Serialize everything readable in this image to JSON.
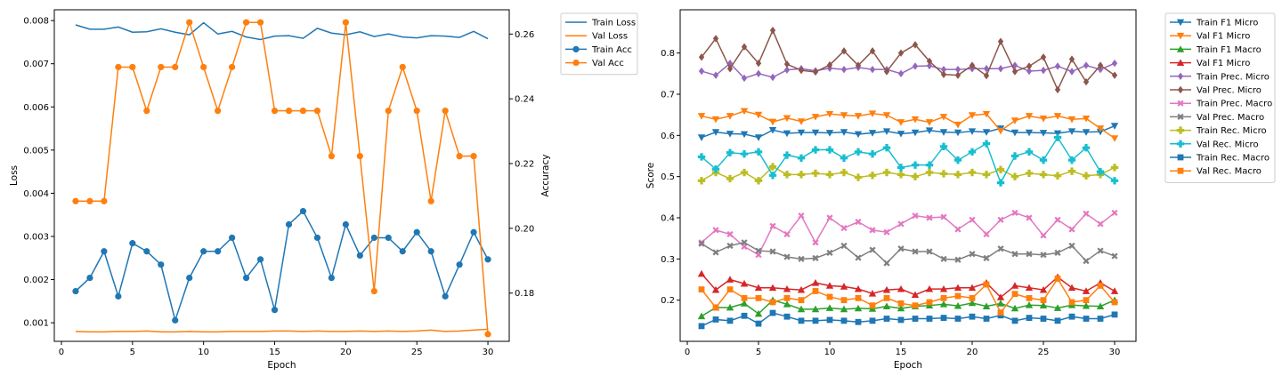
{
  "chart_data": [
    {
      "type": "line",
      "title": "",
      "xlabel": "Epoch",
      "ylabel": "Loss",
      "y2label": "Accuracy",
      "xlim": [
        -0.5,
        31.5
      ],
      "ylim": [
        0.00057,
        0.00825
      ],
      "y2lim": [
        0.1651,
        0.2675
      ],
      "xticks": [
        "0",
        "5",
        "10",
        "15",
        "20",
        "25",
        "30"
      ],
      "yticks": [
        "0.001",
        "0.002",
        "0.003",
        "0.004",
        "0.005",
        "0.006",
        "0.007",
        "0.008"
      ],
      "y2ticks": [
        "0.18",
        "0.20",
        "0.22",
        "0.24",
        "0.26"
      ],
      "legend_position": "upper-right-outside",
      "x": [
        1,
        2,
        3,
        4,
        5,
        6,
        7,
        8,
        9,
        10,
        11,
        12,
        13,
        14,
        15,
        16,
        17,
        18,
        19,
        20,
        21,
        22,
        23,
        24,
        25,
        26,
        27,
        28,
        29,
        30
      ],
      "series": [
        {
          "name": "Train Loss",
          "axis": "left",
          "color": "#1f77b4",
          "marker": "none",
          "values": [
            0.0079,
            0.0078,
            0.0078,
            0.00785,
            0.00773,
            0.00774,
            0.00781,
            0.00773,
            0.00767,
            0.00795,
            0.00769,
            0.00775,
            0.00762,
            0.00756,
            0.00764,
            0.00765,
            0.00759,
            0.00782,
            0.00771,
            0.00767,
            0.00774,
            0.00763,
            0.00769,
            0.00762,
            0.0076,
            0.00765,
            0.00764,
            0.00761,
            0.00775,
            0.00758
          ]
        },
        {
          "name": "Val Loss",
          "axis": "left",
          "color": "#ff7f0e",
          "marker": "none",
          "values": [
            0.0008,
            0.00079,
            0.00079,
            0.0008,
            0.0008,
            0.00081,
            0.00079,
            0.00079,
            0.0008,
            0.00079,
            0.00079,
            0.0008,
            0.0008,
            0.0008,
            0.00081,
            0.00081,
            0.0008,
            0.00081,
            0.0008,
            0.0008,
            0.00081,
            0.0008,
            0.00081,
            0.0008,
            0.00081,
            0.00083,
            0.0008,
            0.00081,
            0.00083,
            0.00085
          ]
        },
        {
          "name": "Train Acc",
          "axis": "right",
          "color": "#1f77b4",
          "marker": "circle",
          "values": [
            0.1806,
            0.1847,
            0.1929,
            0.179,
            0.1954,
            0.1929,
            0.1888,
            0.1716,
            0.1847,
            0.1929,
            0.1929,
            0.1971,
            0.1847,
            0.1904,
            0.1748,
            0.2012,
            0.2053,
            0.1971,
            0.1847,
            0.2012,
            0.1916,
            0.1971,
            0.1971,
            0.1929,
            0.1988,
            0.1929,
            0.179,
            0.1888,
            0.1988,
            0.1904
          ]
        },
        {
          "name": "Val Acc",
          "axis": "right",
          "color": "#ff7f0e",
          "marker": "circle",
          "values": [
            0.2084,
            0.2084,
            0.2084,
            0.2498,
            0.2498,
            0.2363,
            0.2498,
            0.2498,
            0.2636,
            0.2498,
            0.2363,
            0.2498,
            0.2636,
            0.2636,
            0.2363,
            0.2363,
            0.2363,
            0.2363,
            0.2223,
            0.2636,
            0.2223,
            0.1806,
            0.2363,
            0.2498,
            0.2363,
            0.2084,
            0.2363,
            0.2223,
            0.2223,
            0.1673
          ]
        }
      ]
    },
    {
      "type": "line",
      "title": "",
      "xlabel": "Epoch",
      "ylabel": "Score",
      "xlim": [
        -0.5,
        31.5
      ],
      "ylim": [
        0.1,
        0.905
      ],
      "xticks": [
        "0",
        "5",
        "10",
        "15",
        "20",
        "25",
        "30"
      ],
      "yticks": [
        "0.2",
        "0.3",
        "0.4",
        "0.5",
        "0.6",
        "0.7",
        "0.8"
      ],
      "legend_position": "upper-right-outside",
      "x": [
        1,
        2,
        3,
        4,
        5,
        6,
        7,
        8,
        9,
        10,
        11,
        12,
        13,
        14,
        15,
        16,
        17,
        18,
        19,
        20,
        21,
        22,
        23,
        24,
        25,
        26,
        27,
        28,
        29,
        30
      ],
      "series": [
        {
          "name": "Train F1 Micro",
          "color": "#1f77b4",
          "marker": "triangle-down",
          "values": [
            0.595,
            0.608,
            0.604,
            0.603,
            0.595,
            0.613,
            0.605,
            0.607,
            0.607,
            0.606,
            0.608,
            0.603,
            0.606,
            0.61,
            0.604,
            0.607,
            0.612,
            0.608,
            0.607,
            0.61,
            0.608,
            0.617,
            0.607,
            0.607,
            0.606,
            0.605,
            0.61,
            0.608,
            0.609,
            0.623
          ]
        },
        {
          "name": "Val F1 Micro",
          "color": "#ff7f0e",
          "marker": "triangle-down",
          "values": [
            0.647,
            0.639,
            0.647,
            0.659,
            0.65,
            0.633,
            0.642,
            0.634,
            0.645,
            0.652,
            0.649,
            0.647,
            0.653,
            0.649,
            0.632,
            0.639,
            0.632,
            0.645,
            0.626,
            0.649,
            0.652,
            0.611,
            0.636,
            0.647,
            0.641,
            0.647,
            0.639,
            0.641,
            0.617,
            0.593
          ]
        },
        {
          "name": "Train F1 Macro",
          "color": "#2ca02c",
          "marker": "triangle-up",
          "values": [
            0.161,
            0.182,
            0.182,
            0.192,
            0.167,
            0.2,
            0.19,
            0.178,
            0.178,
            0.181,
            0.178,
            0.18,
            0.179,
            0.185,
            0.18,
            0.185,
            0.187,
            0.19,
            0.186,
            0.193,
            0.185,
            0.192,
            0.18,
            0.188,
            0.187,
            0.181,
            0.188,
            0.186,
            0.185,
            0.2
          ]
        },
        {
          "name": "Val F1 Micro",
          "color": "#d62728",
          "marker": "triangle-up",
          "values": [
            0.264,
            0.225,
            0.25,
            0.24,
            0.23,
            0.23,
            0.227,
            0.225,
            0.242,
            0.235,
            0.233,
            0.227,
            0.216,
            0.225,
            0.227,
            0.213,
            0.227,
            0.227,
            0.23,
            0.23,
            0.242,
            0.207,
            0.235,
            0.23,
            0.225,
            0.256,
            0.23,
            0.222,
            0.242,
            0.222
          ]
        },
        {
          "name": "Train Prec. Micro",
          "color": "#9467bd",
          "marker": "diamond",
          "values": [
            0.756,
            0.746,
            0.775,
            0.739,
            0.75,
            0.741,
            0.759,
            0.762,
            0.757,
            0.763,
            0.76,
            0.765,
            0.76,
            0.76,
            0.75,
            0.768,
            0.769,
            0.76,
            0.76,
            0.762,
            0.762,
            0.762,
            0.77,
            0.756,
            0.758,
            0.768,
            0.755,
            0.77,
            0.76,
            0.775
          ]
        },
        {
          "name": "Val Prec. Micro",
          "color": "#8c564b",
          "marker": "diamond",
          "values": [
            0.79,
            0.835,
            0.762,
            0.815,
            0.775,
            0.855,
            0.773,
            0.758,
            0.754,
            0.771,
            0.805,
            0.77,
            0.805,
            0.755,
            0.8,
            0.82,
            0.78,
            0.748,
            0.746,
            0.77,
            0.745,
            0.828,
            0.755,
            0.768,
            0.79,
            0.711,
            0.785,
            0.73,
            0.77,
            0.746
          ]
        },
        {
          "name": "Train Prec. Macro",
          "color": "#e377c2",
          "marker": "x",
          "values": [
            0.34,
            0.37,
            0.36,
            0.33,
            0.31,
            0.38,
            0.36,
            0.405,
            0.34,
            0.4,
            0.375,
            0.39,
            0.37,
            0.365,
            0.385,
            0.405,
            0.4,
            0.402,
            0.372,
            0.395,
            0.36,
            0.395,
            0.412,
            0.4,
            0.357,
            0.395,
            0.372,
            0.41,
            0.385,
            0.412
          ]
        },
        {
          "name": "Val Prec. Macro",
          "color": "#7f7f7f",
          "marker": "x",
          "values": [
            0.337,
            0.316,
            0.332,
            0.34,
            0.32,
            0.318,
            0.305,
            0.3,
            0.302,
            0.315,
            0.332,
            0.303,
            0.322,
            0.29,
            0.325,
            0.318,
            0.318,
            0.3,
            0.298,
            0.312,
            0.302,
            0.325,
            0.312,
            0.312,
            0.31,
            0.315,
            0.332,
            0.295,
            0.32,
            0.307
          ]
        },
        {
          "name": "Train Rec. Micro",
          "color": "#bcbd22",
          "marker": "plus",
          "values": [
            0.49,
            0.51,
            0.495,
            0.51,
            0.49,
            0.524,
            0.505,
            0.505,
            0.508,
            0.505,
            0.51,
            0.498,
            0.503,
            0.51,
            0.505,
            0.5,
            0.51,
            0.507,
            0.505,
            0.51,
            0.505,
            0.517,
            0.5,
            0.508,
            0.505,
            0.502,
            0.513,
            0.502,
            0.505,
            0.522
          ]
        },
        {
          "name": "Val Rec. Micro",
          "color": "#17becf",
          "marker": "plus",
          "values": [
            0.548,
            0.518,
            0.558,
            0.555,
            0.56,
            0.503,
            0.552,
            0.545,
            0.565,
            0.565,
            0.545,
            0.56,
            0.555,
            0.57,
            0.522,
            0.528,
            0.528,
            0.573,
            0.54,
            0.56,
            0.58,
            0.485,
            0.55,
            0.56,
            0.54,
            0.595,
            0.54,
            0.57,
            0.512,
            0.49
          ]
        },
        {
          "name": "Train Rec. Macro",
          "color": "#1f77b4",
          "marker": "square",
          "values": [
            0.137,
            0.153,
            0.15,
            0.162,
            0.143,
            0.169,
            0.16,
            0.15,
            0.15,
            0.152,
            0.15,
            0.147,
            0.15,
            0.155,
            0.152,
            0.155,
            0.155,
            0.157,
            0.155,
            0.16,
            0.155,
            0.163,
            0.15,
            0.157,
            0.155,
            0.15,
            0.16,
            0.155,
            0.155,
            0.165
          ]
        },
        {
          "name": "Val Rec. Macro",
          "color": "#ff7f0e",
          "marker": "square",
          "values": [
            0.226,
            0.182,
            0.226,
            0.205,
            0.205,
            0.195,
            0.205,
            0.2,
            0.222,
            0.208,
            0.2,
            0.205,
            0.187,
            0.205,
            0.192,
            0.187,
            0.195,
            0.205,
            0.21,
            0.205,
            0.238,
            0.17,
            0.215,
            0.205,
            0.2,
            0.252,
            0.195,
            0.2,
            0.235,
            0.195
          ]
        }
      ]
    }
  ]
}
